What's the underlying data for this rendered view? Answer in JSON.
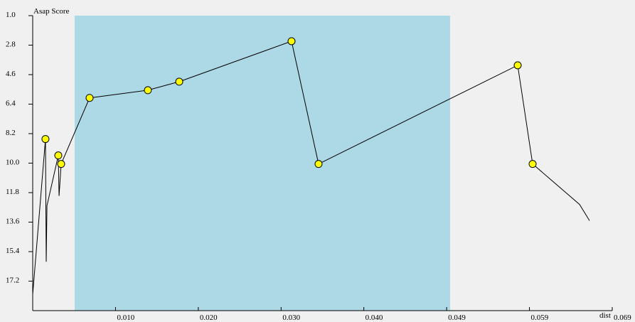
{
  "chart_data": {
    "type": "line",
    "y_label": "Asap Score",
    "x_label": "dist",
    "xlim": [
      0,
      0.0695
    ],
    "ylim": [
      1,
      19
    ],
    "y_inverted": true,
    "xticks": [
      {
        "value": 0.00993,
        "label": "0.010"
      },
      {
        "value": 0.01986,
        "label": "0.020"
      },
      {
        "value": 0.02979,
        "label": "0.030"
      },
      {
        "value": 0.03971,
        "label": "0.040"
      },
      {
        "value": 0.04964,
        "label": "0.049"
      },
      {
        "value": 0.05957,
        "label": "0.059"
      },
      {
        "value": 0.0695,
        "label": "0.069"
      }
    ],
    "yticks": [
      {
        "value": 1,
        "label": "1.0"
      },
      2.8,
      4.6,
      6.4,
      8.2,
      {
        "value": 10,
        "label": "10.0"
      },
      11.8,
      13.6,
      15.4,
      17.2
    ],
    "highlight": [
      0.00503,
      0.05006
    ],
    "highlight_color": "#add8e6",
    "series": [
      {
        "color": "#000000",
        "marker_color": "#ffff00",
        "x": [
          0,
          0.00153,
          0.00162,
          0.00171,
          0.00307,
          0.00316,
          0.00341,
          0.00682,
          0.01381,
          0.01757,
          0.03104,
          0.03428,
          0.05816,
          0.05995,
          0.06558,
          0.06677
        ],
        "values": [
          18.01,
          8.53,
          16.02,
          12.6,
          9.53,
          12.0,
          10.05,
          6.02,
          5.55,
          5.03,
          2.56,
          10.05,
          4.03,
          10.05,
          12.52,
          13.51
        ],
        "markers": [
          false,
          true,
          false,
          false,
          true,
          false,
          true,
          true,
          true,
          true,
          true,
          true,
          true,
          true,
          false,
          false
        ]
      }
    ]
  }
}
